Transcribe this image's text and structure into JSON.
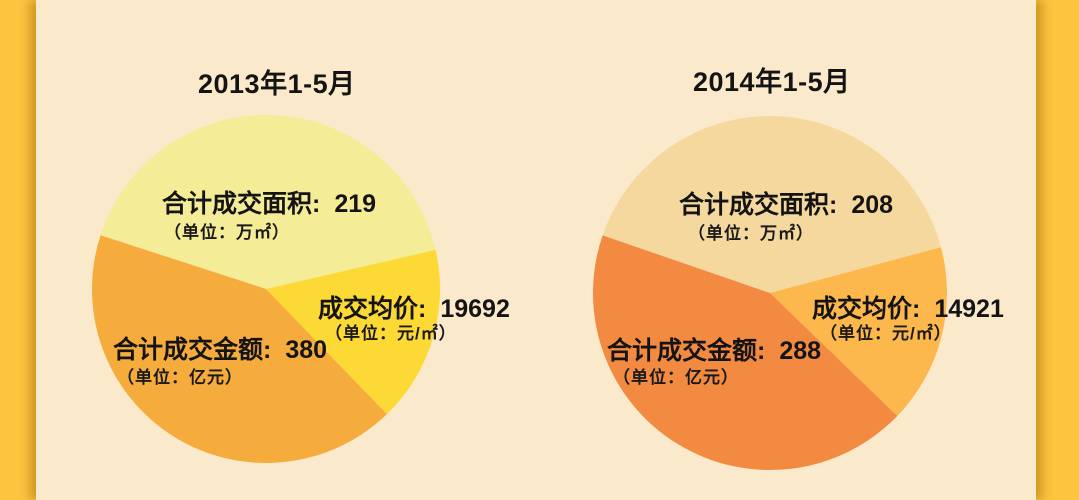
{
  "page": {
    "background_color": "#FDC440",
    "panel_color": "#FAEACB",
    "text_color": "#141414"
  },
  "chart_data": [
    {
      "type": "pie",
      "title": "2013年1-5月",
      "legend_position": "none",
      "slices": [
        {
          "id": "area",
          "name": "合计成交面积",
          "label": "合计成交面积:",
          "value": 219,
          "value_display": "219",
          "unit": "万㎡",
          "unit_display": "（单位：万㎡）",
          "color": "#F4EC96",
          "start_deg": 288,
          "end_deg": 437
        },
        {
          "id": "price",
          "name": "成交均价",
          "label": "成交均价:",
          "value": 19692,
          "value_display": "19692",
          "unit": "元/㎡",
          "unit_display": "（单位：元/㎡）",
          "color": "#FDD935",
          "start_deg": 77,
          "end_deg": 136
        },
        {
          "id": "amount",
          "name": "合计成交金额",
          "label": "合计成交金额:",
          "value": 380,
          "value_display": "380",
          "unit": "亿元",
          "unit_display": "（单位：亿元）",
          "color": "#F6AB3D",
          "start_deg": 136,
          "end_deg": 288
        }
      ]
    },
    {
      "type": "pie",
      "title": "2014年1-5月",
      "legend_position": "none",
      "slices": [
        {
          "id": "area",
          "name": "合计成交面积",
          "label": "合计成交面积:",
          "value": 208,
          "value_display": "208",
          "unit": "万㎡",
          "unit_display": "（单位：万㎡）",
          "color": "#F5D89D",
          "start_deg": 289,
          "end_deg": 435
        },
        {
          "id": "price",
          "name": "成交均价",
          "label": "成交均价:",
          "value": 14921,
          "value_display": "14921",
          "unit": "元/㎡",
          "unit_display": "（单位：元/㎡）",
          "color": "#FCB84D",
          "start_deg": 75,
          "end_deg": 134
        },
        {
          "id": "amount",
          "name": "合计成交金额",
          "label": "合计成交金额:",
          "value": 288,
          "value_display": "288",
          "unit": "亿元",
          "unit_display": "（单位：亿元）",
          "color": "#F28A42",
          "start_deg": 134,
          "end_deg": 289
        }
      ]
    }
  ]
}
